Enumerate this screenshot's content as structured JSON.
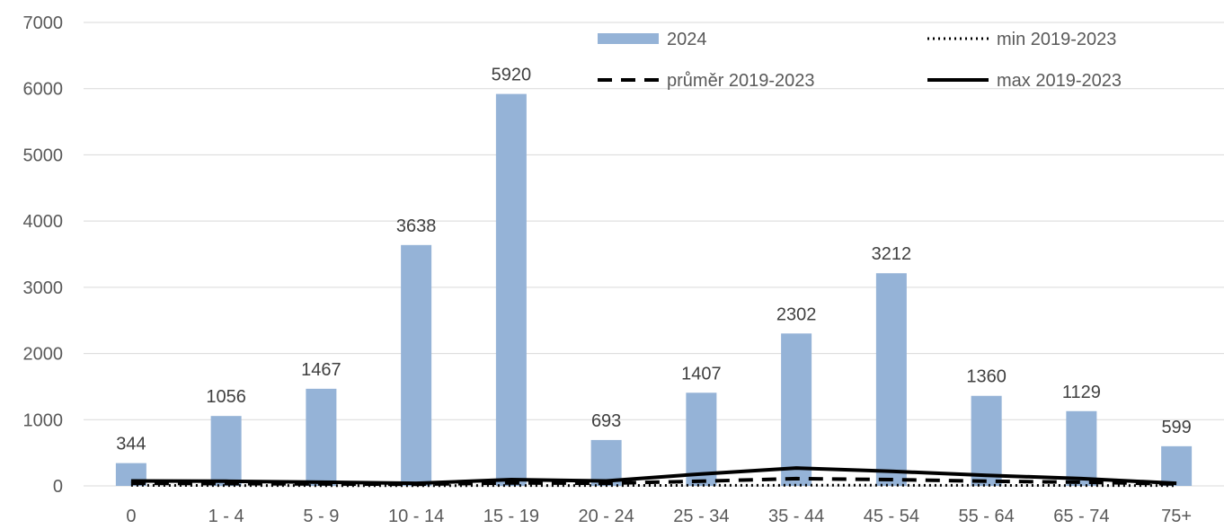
{
  "chart_data": {
    "type": "bar",
    "title": "",
    "categories": [
      "0",
      "1 - 4",
      "5 - 9",
      "10 - 14",
      "15 - 19",
      "20 - 24",
      "25 - 34",
      "35 - 44",
      "45 - 54",
      "55 - 64",
      "65 - 74",
      "75+"
    ],
    "series": [
      {
        "name": "2024",
        "kind": "bar",
        "color": "#95B3D7",
        "values": [
          344,
          1056,
          1467,
          3638,
          5920,
          693,
          1407,
          2302,
          3212,
          1360,
          1129,
          599
        ]
      },
      {
        "name": "min 2019-2023",
        "kind": "line",
        "style": "dotted",
        "color": "#000000",
        "values": [
          8,
          5,
          4,
          3,
          5,
          5,
          8,
          10,
          10,
          8,
          6,
          4
        ]
      },
      {
        "name": "průměr 2019-2023",
        "kind": "line",
        "style": "dashed",
        "color": "#000000",
        "values": [
          40,
          35,
          30,
          25,
          45,
          40,
          70,
          110,
          95,
          70,
          55,
          30
        ]
      },
      {
        "name": "max 2019-2023",
        "kind": "line",
        "style": "solid",
        "color": "#000000",
        "values": [
          75,
          70,
          55,
          40,
          95,
          75,
          180,
          270,
          220,
          160,
          110,
          40
        ]
      }
    ],
    "ylim": [
      0,
      7000
    ],
    "yticks": [
      "0",
      "1000",
      "2000",
      "3000",
      "4000",
      "5000",
      "6000",
      "7000"
    ],
    "grid": true,
    "legend_position": "top-right"
  }
}
